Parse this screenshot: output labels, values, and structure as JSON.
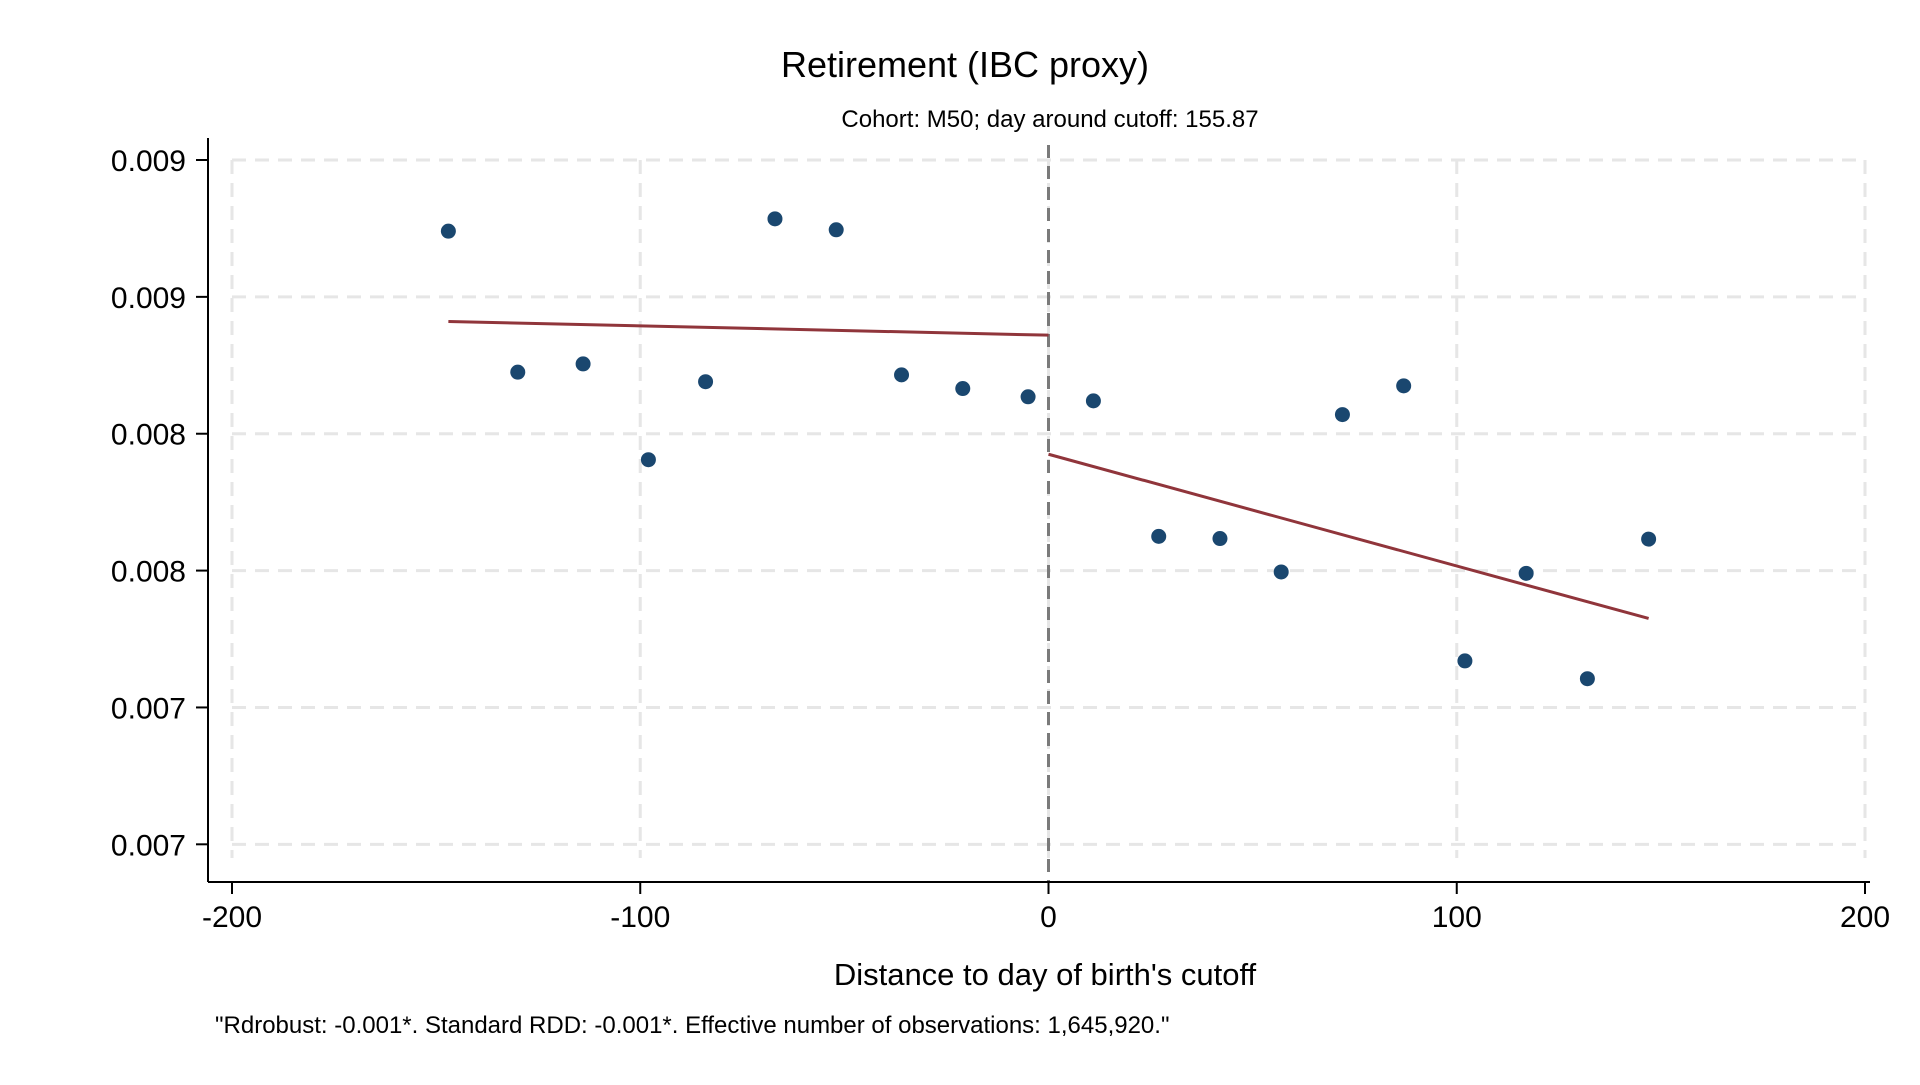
{
  "chart_data": {
    "type": "scatter",
    "title": "Retirement (IBC proxy)",
    "subtitle": "Cohort: M50; day around cutoff:  155.87",
    "xlabel": "Distance to day of birth's cutoff",
    "ylabel": "",
    "note": "\"Rdrobust: -0.001*. Standard RDD: -0.001*. Effective number of observations: 1,645,920.\"",
    "xlim": [
      -200,
      200
    ],
    "ylim": [
      0.00675,
      0.0093
    ],
    "x_ticks": [
      -200,
      -100,
      0,
      100,
      200
    ],
    "x_tick_labels": [
      "-200",
      "-100",
      "0",
      "100",
      "200"
    ],
    "y_ticks": [
      0.0068,
      0.0073,
      0.0078,
      0.0083,
      0.0088,
      0.0093
    ],
    "y_tick_labels": [
      "0.007",
      "0.007",
      "0.008",
      "0.008",
      "0.009",
      "0.009"
    ],
    "grid": true,
    "cutoff": 0,
    "series": [
      {
        "type": "scatter",
        "color": "#1a476f",
        "points": [
          {
            "x": -147,
            "y": 0.00904
          },
          {
            "x": -130,
            "y": 0.008525
          },
          {
            "x": -114,
            "y": 0.008555
          },
          {
            "x": -98,
            "y": 0.008205
          },
          {
            "x": -84,
            "y": 0.00849
          },
          {
            "x": -67,
            "y": 0.009085
          },
          {
            "x": -52,
            "y": 0.009045
          },
          {
            "x": -36,
            "y": 0.008515
          },
          {
            "x": -21,
            "y": 0.008465
          },
          {
            "x": -5,
            "y": 0.008435
          },
          {
            "x": 11,
            "y": 0.00842
          },
          {
            "x": 27,
            "y": 0.007925
          },
          {
            "x": 42,
            "y": 0.007917
          },
          {
            "x": 57,
            "y": 0.007795
          },
          {
            "x": 72,
            "y": 0.00837
          },
          {
            "x": 87,
            "y": 0.008475
          },
          {
            "x": 102,
            "y": 0.00747
          },
          {
            "x": 117,
            "y": 0.00779
          },
          {
            "x": 132,
            "y": 0.007405
          },
          {
            "x": 147,
            "y": 0.007915
          }
        ]
      },
      {
        "type": "line",
        "segment": "left-fit",
        "color": "#90353b",
        "points": [
          {
            "x": -147,
            "y": 0.00871
          },
          {
            "x": 0,
            "y": 0.00866
          }
        ]
      },
      {
        "type": "line",
        "segment": "right-fit",
        "color": "#90353b",
        "points": [
          {
            "x": 0,
            "y": 0.008225
          },
          {
            "x": 147,
            "y": 0.007625
          }
        ]
      }
    ],
    "colors": {
      "points": "#1a476f",
      "fit": "#90353b",
      "cutoff_line": "#7a7a7a",
      "grid": "#e6e6e6",
      "axis": "#000000"
    }
  }
}
